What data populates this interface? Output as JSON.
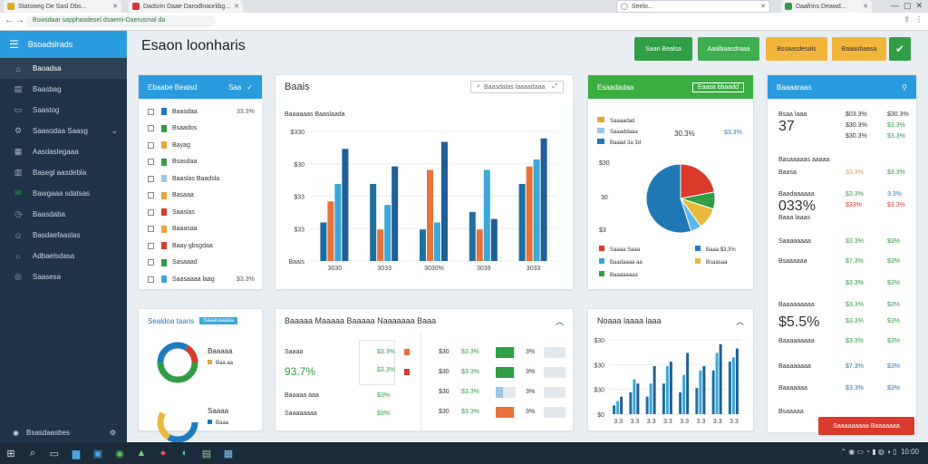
{
  "browser": {
    "tabs": [
      {
        "label": "Statsweg De Sasl Dbs...",
        "color": "#e0a91c"
      },
      {
        "label": "Dadsrin Daae Darodlnaorlibg...",
        "color": "#d33"
      },
      {
        "label": "",
        "color": "#1a73e8"
      },
      {
        "label": "Daafrins Deawd...",
        "color": "#2f9e44"
      }
    ],
    "url": "Bswsdaar sapphasdesel dsaemi-Daerusmal da",
    "omnibox_right": "Seelo..."
  },
  "sidebar": {
    "header": "Bsoadslrads",
    "items": [
      {
        "label": "Baoadsa",
        "icon": "home-icon"
      },
      {
        "label": "Baasbag",
        "icon": "chart-icon"
      },
      {
        "label": "Saastog",
        "icon": "folder-icon"
      },
      {
        "label": "Saasodaa Saasg",
        "icon": "settings-icon"
      },
      {
        "label": "Aasdaslegaaa",
        "icon": "calendar-icon"
      },
      {
        "label": "Basegl aasdebla",
        "icon": "table-icon"
      },
      {
        "label": "Bawgaaa sdatsas",
        "icon": "mail-icon"
      },
      {
        "label": "Baasdaba",
        "icon": "clock-icon"
      },
      {
        "label": "Basdaefaaslas",
        "icon": "users-icon"
      },
      {
        "label": "Adbaelsdasa",
        "icon": "report-icon"
      },
      {
        "label": "Saasesa",
        "icon": "globe-icon"
      }
    ],
    "footer": "Bsasdaasbes"
  },
  "main": {
    "title": "Esaon loonharis",
    "buttons": [
      "Saan Bealsa",
      "Aaalbaasdraaa",
      "Bssaasdesals",
      "Baaasbaasa"
    ]
  },
  "list_panel": {
    "title": "Ebaabe Bealsd",
    "action": "Saa",
    "rows": [
      {
        "label": "Baasdaa",
        "value": "33.3%",
        "color": "#1f7bc0"
      },
      {
        "label": "Bsaados",
        "value": "",
        "color": "#2f9e44"
      },
      {
        "label": "Bayag",
        "value": "",
        "color": "#e8a33a"
      },
      {
        "label": "Bsasdaa",
        "value": "",
        "color": "#2f9e44"
      },
      {
        "label": "Baaslas Baadsla",
        "value": "",
        "color": "#9cc7e8"
      },
      {
        "label": "Basaaa",
        "value": "",
        "color": "#e8a33a"
      },
      {
        "label": "Saaslas",
        "value": "",
        "color": "#d93a2b"
      },
      {
        "label": "Baaasaa",
        "value": "",
        "color": "#e8a33a"
      },
      {
        "label": "Baay gbsgdaa",
        "value": "",
        "color": "#d93a2b"
      },
      {
        "label": "Sasaaad",
        "value": "",
        "color": "#2f9e44"
      },
      {
        "label": "Saasaaaa laag",
        "value": "$3.3%",
        "color": "#3aa8d8"
      }
    ]
  },
  "bar_panel": {
    "title": "Baais",
    "search": "Baasdalas laaaadaaa"
  },
  "chart_data": [
    {
      "type": "bar",
      "title": "",
      "subtitle": "Baaaaaas Baaslaada",
      "categories": [
        "3030",
        "3033",
        "3030%",
        "3039",
        "3033"
      ],
      "yticks": [
        "$330",
        "$30",
        "$33",
        "$33",
        "Baais"
      ],
      "series": [
        {
          "color": "#1f6fa0",
          "values": [
            55,
            110,
            45,
            70,
            110
          ]
        },
        {
          "color": "#e8733a",
          "values": [
            85,
            45,
            130,
            45,
            135
          ]
        },
        {
          "color": "#3aa8d8",
          "values": [
            110,
            80,
            55,
            130,
            145
          ]
        },
        {
          "color": "#1f5f96",
          "values": [
            160,
            135,
            170,
            60,
            175
          ]
        }
      ],
      "ylim": [
        0,
        185
      ]
    },
    {
      "type": "pie",
      "values": [
        22,
        8,
        10,
        5,
        55
      ],
      "colors": [
        "#d93a2b",
        "#2f9e44",
        "#e8b93a",
        "#5fb6e8",
        "#1f78b4"
      ]
    },
    {
      "type": "bar",
      "title": "",
      "categories": [
        "3.3",
        "3.3",
        "3.3",
        "3.3",
        "3.3",
        "3.3",
        "3.3",
        "3.3"
      ],
      "yticks": [
        "$30",
        "$30",
        "$30",
        "$0"
      ],
      "series": [
        {
          "color": "#1f6fa0",
          "values": [
            10,
            25,
            20,
            35,
            25,
            30,
            50,
            60
          ]
        },
        {
          "color": "#3aa8d8",
          "values": [
            15,
            40,
            35,
            55,
            45,
            50,
            70,
            65
          ]
        },
        {
          "color": "#1f5f96",
          "values": [
            20,
            35,
            55,
            60,
            70,
            55,
            80,
            75
          ]
        }
      ],
      "ylim": [
        0,
        85
      ]
    }
  ],
  "pie_panel": {
    "title": "Esaadadaa",
    "action": "Eaasa bbaadd",
    "legend_top": [
      "Saaaadad",
      "Saaaddaaa",
      "Baaad 3a 3d"
    ],
    "pct_a": "30.3%",
    "pct_b": "$3.3%",
    "axis": [
      "$30",
      "30",
      "$3"
    ],
    "legend_bottom": [
      "Saaaa Saaa",
      "Baaa",
      "Baadaaaa aa",
      "Bsaasaa",
      "Baaaaaaaa"
    ],
    "legend_val": "$3.3%"
  },
  "stats_panel": {
    "title": "Baaaaraas",
    "rows": [
      {
        "a": "Bsaa laaa",
        "b": "$03.3%",
        "c": "$30.3%",
        "ac": "",
        "bc": "",
        "cc": ""
      },
      {
        "a": "37",
        "b": "$30.3%",
        "c": "$3.3%",
        "ac": "big",
        "bc": "",
        "cc": "green"
      },
      {
        "a": "",
        "b": "$30.3%",
        "c": "$3.3%",
        "ac": "",
        "bc": "",
        "cc": "green"
      },
      {
        "a": "Basaaaaas aaaaa",
        "b": "",
        "c": "",
        "ac": "",
        "bc": "",
        "cc": ""
      },
      {
        "a": "Baasa",
        "b": "$3.3%",
        "c": "$3.3%",
        "ac": "",
        "bc": "orange",
        "cc": "green"
      },
      {
        "a": "Baadaaaaaa",
        "b": "$3.3%",
        "c": "3.3%",
        "ac": "",
        "bc": "green",
        "cc": "blue"
      },
      {
        "a": "033%",
        "b": "$33%",
        "c": "$3.3%",
        "ac": "big",
        "bc": "red",
        "cc": "red"
      },
      {
        "a": "Baaa laaas",
        "b": "",
        "c": "",
        "ac": "",
        "bc": "",
        "cc": ""
      },
      {
        "a": "Saaaaaaaa",
        "b": "$3.3%",
        "c": "$3%",
        "ac": "",
        "bc": "green",
        "cc": "green"
      },
      {
        "a": "Bsaaaaaa",
        "b": "$7.3%",
        "c": "$3%",
        "ac": "",
        "bc": "green",
        "cc": "green"
      },
      {
        "a": "",
        "b": "$3.3%",
        "c": "$3%",
        "ac": "",
        "bc": "green",
        "cc": "green"
      },
      {
        "a": "Baaaaaaaaa",
        "b": "$3.3%",
        "c": "$3%",
        "ac": "",
        "bc": "green",
        "cc": "green"
      },
      {
        "a": "$5.5%",
        "b": "$3.3%",
        "c": "$3%",
        "ac": "big",
        "bc": "green",
        "cc": "green"
      },
      {
        "a": "Baaaaaaaaa",
        "b": "$3.3%",
        "c": "$3%",
        "ac": "",
        "bc": "green",
        "cc": "green"
      },
      {
        "a": "Baaaaaaaa",
        "b": "$7.3%",
        "c": "$3%",
        "ac": "",
        "bc": "blue",
        "cc": "blue"
      },
      {
        "a": "Baaaaaaa",
        "b": "$3.3%",
        "c": "$3%",
        "ac": "",
        "bc": "blue",
        "cc": "blue"
      },
      {
        "a": "Bsaaaaa",
        "b": "",
        "c": "",
        "ac": "",
        "bc": "",
        "cc": ""
      }
    ],
    "alert": "Saaaaaaaaa Baaaaaaa"
  },
  "donut_panel": {
    "title": "Sealdoa taaris",
    "badge": "Saaasaaaaa",
    "donut1_title": "Baaaaa",
    "donut1_sub": "Baa aa",
    "donut2_title": "Saaaa",
    "donut2_sub": "Baaa"
  },
  "table_panel": {
    "title": "Baaaaa Maaaaa Baaaaa Naaaaaaa Baaa",
    "left": [
      {
        "label": "Saaaa",
        "value": "$3.3%",
        "vc": "green"
      },
      {
        "label": "93.7%",
        "value": "$3.3%",
        "vc": "green",
        "big": true
      },
      {
        "label": "Baaaaa aaa",
        "value": "$3%",
        "vc": "green"
      },
      {
        "label": "Saaaaaaaa",
        "value": "$3%",
        "vc": "green"
      }
    ],
    "right": [
      {
        "a": "$30",
        "b": "$3.3%",
        "c": "3%"
      },
      {
        "a": "$30",
        "b": "$3.3%",
        "c": "3%"
      },
      {
        "a": "$30",
        "b": "$3.3%",
        "c": "3%"
      },
      {
        "a": "$30",
        "b": "$3.3%",
        "c": "3%"
      }
    ]
  },
  "small_chart_panel": {
    "title": "Noaaa laaaa laaa"
  },
  "taskbar": {
    "time": "10:00"
  }
}
